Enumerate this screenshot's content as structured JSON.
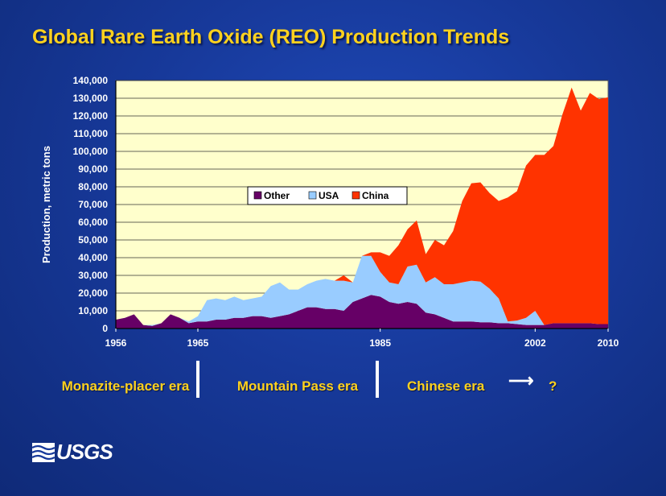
{
  "title": "Global Rare Earth Oxide (REO) Production Trends",
  "chart_data": {
    "type": "area",
    "stacked": true,
    "ylabel": "Production, metric tons",
    "xlabel": "",
    "ylim": [
      0,
      140000
    ],
    "xlim": [
      1956,
      2010
    ],
    "x_ticks": [
      "1956",
      "1965",
      "1985",
      "2002",
      "2010"
    ],
    "y_ticks": [
      "0",
      "10,000",
      "20,000",
      "30,000",
      "40,000",
      "50,000",
      "60,000",
      "70,000",
      "80,000",
      "90,000",
      "100,000",
      "110,000",
      "120,000",
      "130,000",
      "140,000"
    ],
    "legend_position": "center",
    "grid": true,
    "background": "#ffffcc",
    "x": [
      1956,
      1957,
      1958,
      1959,
      1960,
      1961,
      1962,
      1963,
      1964,
      1965,
      1966,
      1967,
      1968,
      1969,
      1970,
      1971,
      1972,
      1973,
      1974,
      1975,
      1976,
      1977,
      1978,
      1979,
      1980,
      1981,
      1982,
      1983,
      1984,
      1985,
      1986,
      1987,
      1988,
      1989,
      1990,
      1991,
      1992,
      1993,
      1994,
      1995,
      1996,
      1997,
      1998,
      1999,
      2000,
      2001,
      2002,
      2003,
      2004,
      2005,
      2006,
      2007,
      2008,
      2009,
      2010
    ],
    "series": [
      {
        "name": "Other",
        "color": "#660066",
        "values": [
          5000,
          6000,
          8000,
          2000,
          1500,
          3000,
          8000,
          6000,
          3000,
          4000,
          4000,
          5000,
          5000,
          6000,
          6000,
          7000,
          7000,
          6000,
          7000,
          8000,
          10000,
          12000,
          12000,
          11000,
          11000,
          10000,
          15000,
          17000,
          19000,
          18000,
          15000,
          14000,
          15000,
          14000,
          9000,
          8000,
          6000,
          4000,
          4000,
          4000,
          3500,
          3500,
          3000,
          3000,
          2500,
          2000,
          2000,
          2000,
          3000,
          3000,
          3000,
          3000,
          3000,
          2500,
          2500
        ]
      },
      {
        "name": "USA",
        "color": "#99ccff",
        "values": [
          0,
          0,
          0,
          0,
          500,
          0,
          0,
          0,
          1000,
          3000,
          12000,
          12000,
          11000,
          12000,
          10000,
          10000,
          11000,
          18000,
          19000,
          14000,
          12000,
          13000,
          15000,
          17000,
          16000,
          17000,
          11000,
          24000,
          22000,
          14000,
          11000,
          11000,
          20000,
          22000,
          17000,
          21000,
          19000,
          21000,
          22000,
          23000,
          23000,
          19000,
          14000,
          1000,
          2000,
          4000,
          8000,
          0,
          0,
          0,
          0,
          0,
          0,
          0,
          0
        ]
      },
      {
        "name": "China",
        "color": "#ff3300",
        "values": [
          0,
          0,
          0,
          0,
          0,
          0,
          0,
          0,
          0,
          0,
          0,
          0,
          0,
          0,
          0,
          0,
          0,
          0,
          0,
          0,
          0,
          0,
          0,
          0,
          0,
          3000,
          0,
          0,
          2000,
          11000,
          15000,
          22000,
          21000,
          25000,
          16000,
          21000,
          22000,
          30000,
          46000,
          55000,
          56000,
          54000,
          55000,
          70000,
          73000,
          86000,
          88000,
          96000,
          100000,
          118000,
          133000,
          120000,
          130000,
          127000,
          128000
        ]
      }
    ]
  },
  "eras": [
    {
      "label": "Monazite-placer era"
    },
    {
      "label": "Mountain Pass era"
    },
    {
      "label": "Chinese era",
      "suffix": "?"
    }
  ],
  "logo": {
    "text": "USGS"
  }
}
